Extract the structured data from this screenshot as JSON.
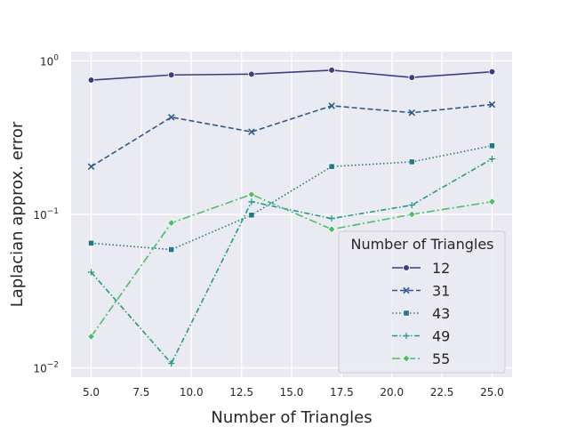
{
  "chart_data": {
    "type": "line",
    "xlabel": "Number of Triangles",
    "ylabel": "Laplacian approx. error",
    "yscale": "log",
    "xlim": [
      4.0,
      26.0
    ],
    "ylim": [
      0.0087,
      1.15
    ],
    "x_ticks": [
      5.0,
      7.5,
      10.0,
      12.5,
      15.0,
      17.5,
      20.0,
      22.5,
      25.0
    ],
    "x_tick_labels": [
      "5.0",
      "7.5",
      "10.0",
      "12.5",
      "15.0",
      "17.5",
      "20.0",
      "22.5",
      "25.0"
    ],
    "y_ticks": [
      {
        "value": 1,
        "base": "10",
        "exp": "0"
      },
      {
        "value": 0.1,
        "base": "10",
        "exp": "−1"
      },
      {
        "value": 0.01,
        "base": "10",
        "exp": "−2"
      }
    ],
    "grid": true,
    "background": "#eaeaf2",
    "legend": {
      "title": "Number of Triangles",
      "position": "lower-right"
    },
    "x": [
      5,
      9,
      13,
      17,
      21,
      25
    ],
    "series": [
      {
        "name": "12",
        "color": "#433b80",
        "dash": "solid",
        "marker": "circle",
        "values": [
          0.75,
          0.81,
          0.82,
          0.87,
          0.78,
          0.85
        ]
      },
      {
        "name": "31",
        "color": "#2e5a8b",
        "dash": "dashed",
        "marker": "x",
        "values": [
          0.205,
          0.43,
          0.345,
          0.51,
          0.46,
          0.52
        ]
      },
      {
        "name": "43",
        "color": "#21778c",
        "dash": "dotted",
        "marker": "square",
        "values": [
          0.065,
          0.059,
          0.099,
          0.205,
          0.22,
          0.28
        ]
      },
      {
        "name": "49",
        "color": "#23998a",
        "dash": "dashdot",
        "marker": "plus",
        "values": [
          0.042,
          0.0107,
          0.121,
          0.094,
          0.115,
          0.23
        ]
      },
      {
        "name": "55",
        "color": "#4bbd6b",
        "dash": "dashdot-long",
        "marker": "diamond",
        "values": [
          0.016,
          0.088,
          0.135,
          0.08,
          0.1,
          0.121
        ]
      }
    ]
  }
}
